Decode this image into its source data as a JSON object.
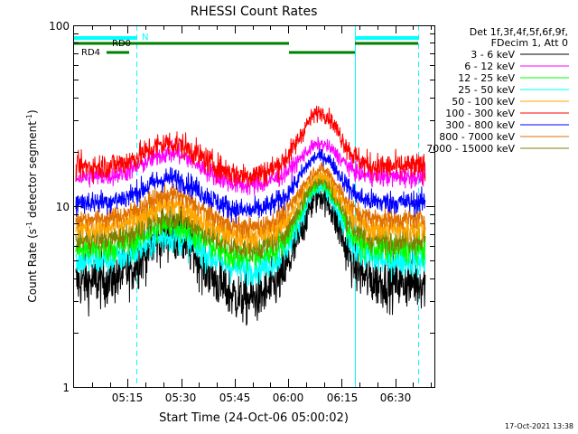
{
  "chart_data": {
    "type": "line",
    "title": "RHESSI Count Rates",
    "xlabel": "Start Time (24-Oct-06 05:00:02)",
    "ylabel_main": "Count Rate (s",
    "ylabel_sup1": "-1",
    "ylabel_mid": " detector segment",
    "ylabel_sup2": "-1",
    "ylabel_end": ")",
    "y_scale": "log",
    "ylim": [
      1,
      100
    ],
    "y_ticks": [
      {
        "value": 1,
        "label": "1"
      },
      {
        "value": 10,
        "label": "10"
      },
      {
        "value": 100,
        "label": "100"
      }
    ],
    "xlim_minutes": [
      0,
      101
    ],
    "x_ticks": [
      {
        "minute": 15,
        "label": "05:15"
      },
      {
        "minute": 30,
        "label": "05:30"
      },
      {
        "minute": 45,
        "label": "05:45"
      },
      {
        "minute": 60,
        "label": "06:00"
      },
      {
        "minute": 75,
        "label": "06:15"
      },
      {
        "minute": 90,
        "label": "06:30"
      }
    ],
    "legend_header": [
      "Det 1f,3f,4f,5f,6f,9f,",
      "FDecim 1, Att 0"
    ],
    "series": [
      {
        "name": "3 - 6 keV",
        "color": "#000000",
        "level": 3.8,
        "peak": 11.5
      },
      {
        "name": "6 - 12 keV",
        "color": "#ff00ff",
        "level": 14.5,
        "peak": 22
      },
      {
        "name": "12 - 25 keV",
        "color": "#00ff00",
        "level": 5.8,
        "peak": 13.5
      },
      {
        "name": "25 - 50 keV",
        "color": "#00ffff",
        "level": 5.0,
        "peak": 12.5
      },
      {
        "name": "50 - 100 keV",
        "color": "#ffa500",
        "level": 7.5,
        "peak": 15
      },
      {
        "name": "100 - 300 keV",
        "color": "#ff0000",
        "level": 16.5,
        "peak": 33
      },
      {
        "name": "300 - 800 keV",
        "color": "#0000ff",
        "level": 10.5,
        "peak": 19
      },
      {
        "name": "800 - 7000 keV",
        "color": "#e07000",
        "level": 8.5,
        "peak": 16
      },
      {
        "name": "7000 - 15000 keV",
        "color": "#808000",
        "level": 6.5,
        "peak": 14
      }
    ],
    "flags": [
      {
        "label": "N",
        "color": "#00ffff"
      },
      {
        "label": "RD0",
        "color": "#008000"
      },
      {
        "label": "RD4",
        "color": "#008000"
      }
    ],
    "timestamp": "17-Oct-2021 13:38"
  }
}
